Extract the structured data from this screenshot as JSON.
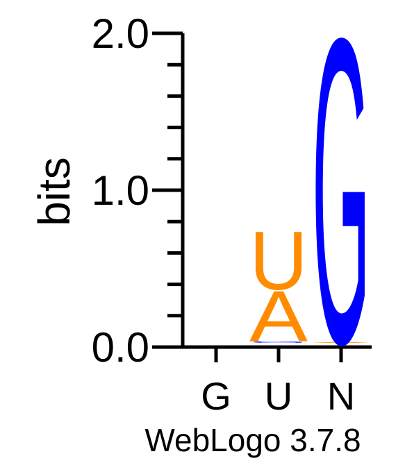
{
  "chart_data": {
    "type": "sequence-logo",
    "ylabel": "bits",
    "ylim": [
      0,
      2.0
    ],
    "yticks": [
      {
        "value": 0.0,
        "label": "0.0"
      },
      {
        "value": 1.0,
        "label": "1.0"
      },
      {
        "value": 2.0,
        "label": "2.0"
      }
    ],
    "minor_tick_step": 0.2,
    "positions": [
      "G",
      "U",
      "N"
    ],
    "stacks": [
      {
        "position": "G",
        "letters": []
      },
      {
        "position": "U",
        "letters": [
          {
            "letter": "G",
            "bits": 0.01,
            "color": "#0000ff"
          },
          {
            "letter": "A",
            "bits": 0.33,
            "color": "#ff8c00"
          },
          {
            "letter": "U",
            "bits": 0.38,
            "color": "#ff8c00"
          }
        ]
      },
      {
        "position": "N",
        "letters": [
          {
            "letter": "A",
            "bits": 0.005,
            "color": "#ff8c00"
          },
          {
            "letter": "G",
            "bits": 1.99,
            "color": "#0000ff"
          }
        ]
      }
    ],
    "footer": "WebLogo 3.7.8"
  }
}
